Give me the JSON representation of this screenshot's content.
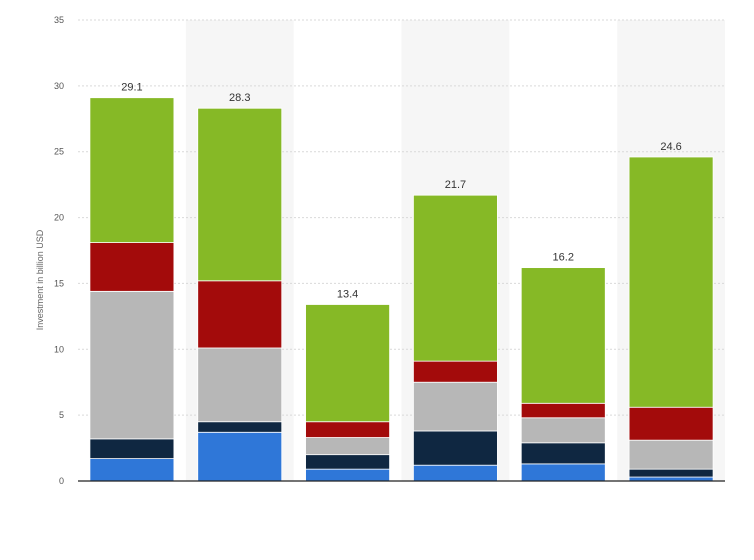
{
  "chart_data": {
    "type": "bar",
    "stacked": true,
    "ylabel": "Investment in billion USD",
    "ylim": [
      0,
      35
    ],
    "yticks": [
      0,
      5,
      10,
      15,
      20,
      25,
      30,
      35
    ],
    "grid": true,
    "totals": [
      "29.1",
      "28.3",
      "13.4",
      "21.7",
      "16.2",
      "24.6"
    ],
    "series": [
      {
        "name": "segment-blue",
        "color": "#2f77d8",
        "values": [
          1.7,
          3.7,
          0.9,
          1.2,
          1.3,
          0.3
        ]
      },
      {
        "name": "segment-navy",
        "color": "#0f2741",
        "values": [
          1.5,
          0.8,
          1.1,
          2.6,
          1.6,
          0.6
        ]
      },
      {
        "name": "segment-gray",
        "color": "#b7b7b7",
        "values": [
          11.2,
          5.6,
          1.3,
          3.7,
          1.9,
          2.2
        ]
      },
      {
        "name": "segment-red",
        "color": "#a30b0b",
        "values": [
          3.7,
          5.1,
          1.2,
          1.6,
          1.1,
          2.5
        ]
      },
      {
        "name": "segment-green",
        "color": "#86b926",
        "values": [
          11.0,
          13.1,
          8.9,
          12.6,
          10.3,
          19.0
        ]
      }
    ]
  }
}
